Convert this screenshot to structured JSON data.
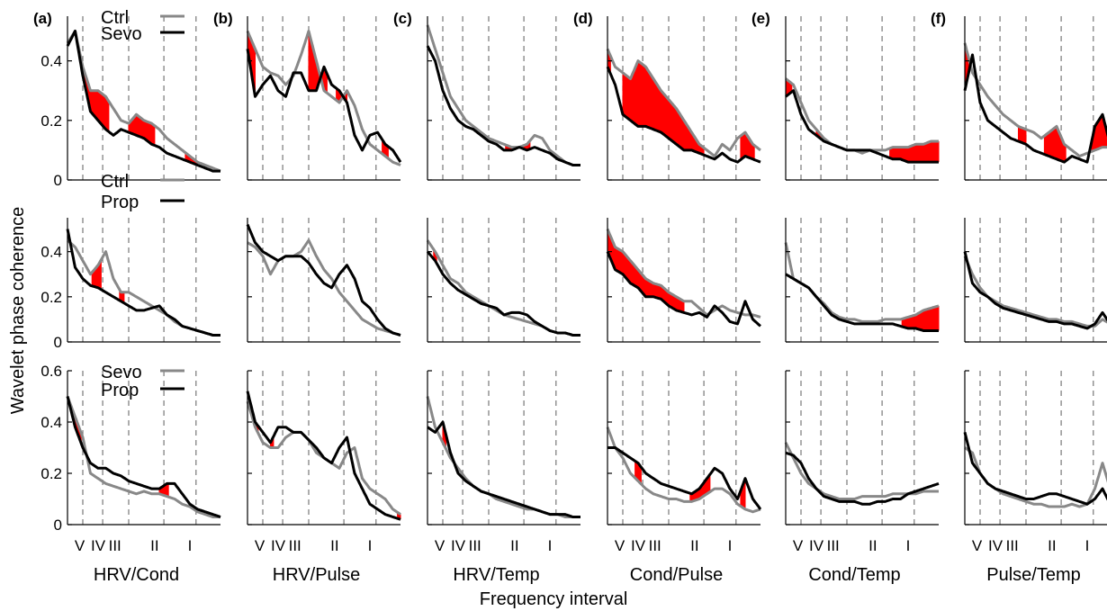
{
  "figure": {
    "ylabel": "Wavelet phase coherence",
    "xlabel": "Frequency interval",
    "interval_labels": [
      "V",
      "IV",
      "III",
      "II",
      "I"
    ],
    "colors": {
      "first": "#888888",
      "second": "#000000",
      "significant": "#ff0000",
      "divider": "#777777"
    }
  },
  "chart_data": {
    "type": "line",
    "panel_letters": [
      "(a)",
      "(b)",
      "(c)",
      "(d)",
      "(e)",
      "(f)"
    ],
    "column_titles": [
      "HRV/Cond",
      "HRV/Pulse",
      "HRV/Temp",
      "Cond/Pulse",
      "Cond/Temp",
      "Pulse/Temp"
    ],
    "rows": [
      {
        "legend": [
          "Ctrl",
          "Sevo"
        ],
        "yticks": [
          "0",
          "0.2",
          "0.4"
        ],
        "ylim": [
          0,
          0.55
        ]
      },
      {
        "legend": [
          "Ctrl",
          "Prop"
        ],
        "yticks": [
          "0",
          "0.2",
          "0.4"
        ],
        "ylim": [
          0,
          0.55
        ]
      },
      {
        "legend": [
          "Sevo",
          "Prop"
        ],
        "yticks": [
          "0",
          "0.2",
          "0.4",
          "0.6"
        ],
        "ylim": [
          0,
          0.6
        ]
      }
    ],
    "x_divisions": [
      0.1,
      0.23,
      0.4,
      0.63,
      0.84
    ],
    "x_label_positions": [
      0.08,
      0.2,
      0.31,
      0.57,
      0.8
    ],
    "panels": [
      [
        {
          "g": [
            0.46,
            0.5,
            0.38,
            0.3,
            0.3,
            0.28,
            0.24,
            0.2,
            0.19,
            0.22,
            0.2,
            0.19,
            0.17,
            0.14,
            0.12,
            0.1,
            0.08,
            0.06,
            0.05,
            0.04,
            0.03
          ],
          "k": [
            0.45,
            0.5,
            0.35,
            0.23,
            0.2,
            0.17,
            0.15,
            0.17,
            0.16,
            0.15,
            0.14,
            0.12,
            0.11,
            0.09,
            0.08,
            0.07,
            0.06,
            0.05,
            0.04,
            0.03,
            0.03
          ],
          "sig": [
            [
              0.1,
              0.27
            ],
            [
              0.4,
              0.57
            ],
            [
              0.77,
              0.85
            ]
          ]
        },
        {
          "g": [
            0.5,
            0.44,
            0.38,
            0.36,
            0.35,
            0.32,
            0.35,
            0.42,
            0.5,
            0.4,
            0.3,
            0.28,
            0.26,
            0.3,
            0.25,
            0.17,
            0.12,
            0.1,
            0.08,
            0.06,
            0.05
          ],
          "k": [
            0.44,
            0.28,
            0.32,
            0.35,
            0.3,
            0.28,
            0.36,
            0.36,
            0.3,
            0.3,
            0.38,
            0.32,
            0.3,
            0.26,
            0.15,
            0.1,
            0.15,
            0.16,
            0.12,
            0.1,
            0.06
          ],
          "sig": [
            [
              0.0,
              0.05
            ],
            [
              0.4,
              0.52
            ],
            [
              0.58,
              0.65
            ],
            [
              0.88,
              0.92
            ]
          ]
        },
        {
          "g": [
            0.52,
            0.44,
            0.36,
            0.28,
            0.24,
            0.2,
            0.18,
            0.16,
            0.14,
            0.13,
            0.12,
            0.11,
            0.11,
            0.12,
            0.15,
            0.14,
            0.1,
            0.08,
            0.06,
            0.05,
            0.05
          ],
          "k": [
            0.45,
            0.4,
            0.3,
            0.24,
            0.2,
            0.18,
            0.17,
            0.15,
            0.13,
            0.12,
            0.1,
            0.1,
            0.11,
            0.1,
            0.11,
            0.1,
            0.09,
            0.07,
            0.06,
            0.05,
            0.05
          ],
          "sig": [
            [
              0.51,
              0.55
            ],
            [
              0.62,
              0.67
            ]
          ]
        },
        {
          "g": [
            0.44,
            0.38,
            0.36,
            0.34,
            0.4,
            0.38,
            0.34,
            0.3,
            0.27,
            0.24,
            0.2,
            0.16,
            0.12,
            0.1,
            0.08,
            0.12,
            0.1,
            0.14,
            0.16,
            0.12,
            0.1
          ],
          "k": [
            0.38,
            0.32,
            0.22,
            0.2,
            0.18,
            0.18,
            0.17,
            0.16,
            0.14,
            0.12,
            0.1,
            0.1,
            0.09,
            0.08,
            0.07,
            0.09,
            0.07,
            0.06,
            0.08,
            0.07,
            0.06
          ],
          "sig": [
            [
              0.0,
              0.02
            ],
            [
              0.1,
              0.63
            ],
            [
              0.87,
              0.96
            ]
          ]
        },
        {
          "g": [
            0.34,
            0.32,
            0.26,
            0.2,
            0.17,
            0.14,
            0.12,
            0.11,
            0.1,
            0.1,
            0.09,
            0.1,
            0.1,
            0.1,
            0.11,
            0.11,
            0.11,
            0.12,
            0.12,
            0.13,
            0.13
          ],
          "k": [
            0.28,
            0.3,
            0.22,
            0.17,
            0.15,
            0.13,
            0.12,
            0.11,
            0.1,
            0.1,
            0.1,
            0.1,
            0.09,
            0.08,
            0.07,
            0.07,
            0.06,
            0.06,
            0.06,
            0.06,
            0.06
          ],
          "sig": [
            [
              0.0,
              0.04
            ],
            [
              0.2,
              0.24
            ],
            [
              0.68,
              1.0
            ]
          ]
        },
        {
          "g": [
            0.46,
            0.36,
            0.32,
            0.28,
            0.25,
            0.22,
            0.2,
            0.18,
            0.17,
            0.16,
            0.14,
            0.16,
            0.18,
            0.12,
            0.1,
            0.08,
            0.09,
            0.1,
            0.11,
            0.11,
            0.1
          ],
          "k": [
            0.3,
            0.42,
            0.26,
            0.2,
            0.18,
            0.16,
            0.14,
            0.13,
            0.12,
            0.1,
            0.09,
            0.08,
            0.07,
            0.06,
            0.08,
            0.07,
            0.06,
            0.18,
            0.22,
            0.12,
            0.06
          ],
          "sig": [
            [
              0.0,
              0.03
            ],
            [
              0.35,
              0.4
            ],
            [
              0.52,
              0.66
            ],
            [
              0.83,
              0.98
            ]
          ]
        }
      ],
      [
        {
          "g": [
            0.45,
            0.42,
            0.36,
            0.3,
            0.34,
            0.4,
            0.28,
            0.22,
            0.22,
            0.2,
            0.18,
            0.16,
            0.14,
            0.12,
            0.09,
            0.07,
            0.06,
            0.05,
            0.04,
            0.03,
            0.03
          ],
          "k": [
            0.5,
            0.33,
            0.28,
            0.25,
            0.24,
            0.22,
            0.2,
            0.18,
            0.16,
            0.14,
            0.14,
            0.15,
            0.16,
            0.12,
            0.1,
            0.07,
            0.06,
            0.05,
            0.04,
            0.03,
            0.03
          ],
          "sig": [
            [
              0.16,
              0.22
            ],
            [
              0.34,
              0.37
            ],
            [
              0.96,
              0.98
            ]
          ]
        },
        {
          "g": [
            0.44,
            0.42,
            0.38,
            0.3,
            0.36,
            0.38,
            0.38,
            0.4,
            0.45,
            0.38,
            0.32,
            0.28,
            0.22,
            0.18,
            0.14,
            0.1,
            0.08,
            0.06,
            0.05,
            0.04,
            0.03
          ],
          "k": [
            0.52,
            0.44,
            0.4,
            0.38,
            0.36,
            0.38,
            0.38,
            0.38,
            0.35,
            0.3,
            0.26,
            0.24,
            0.3,
            0.34,
            0.28,
            0.18,
            0.15,
            0.1,
            0.06,
            0.04,
            0.03
          ],
          "sig": []
        },
        {
          "g": [
            0.45,
            0.4,
            0.34,
            0.28,
            0.26,
            0.22,
            0.2,
            0.18,
            0.16,
            0.14,
            0.12,
            0.11,
            0.1,
            0.09,
            0.08,
            0.07,
            0.05,
            0.04,
            0.04,
            0.03,
            0.03
          ],
          "k": [
            0.4,
            0.36,
            0.3,
            0.26,
            0.23,
            0.21,
            0.19,
            0.17,
            0.16,
            0.15,
            0.12,
            0.13,
            0.13,
            0.12,
            0.09,
            0.07,
            0.05,
            0.04,
            0.04,
            0.03,
            0.03
          ],
          "sig": [
            [
              0.04,
              0.06
            ],
            [
              0.35,
              0.37
            ]
          ]
        },
        {
          "g": [
            0.5,
            0.42,
            0.4,
            0.36,
            0.32,
            0.28,
            0.26,
            0.25,
            0.22,
            0.2,
            0.18,
            0.18,
            0.15,
            0.12,
            0.14,
            0.16,
            0.14,
            0.13,
            0.12,
            0.12,
            0.11
          ],
          "k": [
            0.4,
            0.32,
            0.3,
            0.26,
            0.24,
            0.2,
            0.2,
            0.19,
            0.16,
            0.14,
            0.13,
            0.12,
            0.13,
            0.11,
            0.16,
            0.13,
            0.09,
            0.08,
            0.18,
            0.1,
            0.07
          ],
          "sig": [
            [
              0.0,
              0.5
            ]
          ]
        },
        {
          "g": [
            0.44,
            0.28,
            0.26,
            0.24,
            0.2,
            0.17,
            0.13,
            0.11,
            0.1,
            0.1,
            0.09,
            0.09,
            0.09,
            0.1,
            0.1,
            0.1,
            0.11,
            0.12,
            0.14,
            0.15,
            0.16
          ],
          "k": [
            0.3,
            0.28,
            0.26,
            0.24,
            0.2,
            0.16,
            0.12,
            0.1,
            0.09,
            0.08,
            0.08,
            0.08,
            0.08,
            0.08,
            0.08,
            0.07,
            0.06,
            0.06,
            0.05,
            0.05,
            0.05
          ],
          "sig": [
            [
              0.26,
              0.3
            ],
            [
              0.5,
              0.52
            ],
            [
              0.76,
              1.0
            ]
          ]
        },
        {
          "g": [
            0.38,
            0.3,
            0.24,
            0.2,
            0.18,
            0.16,
            0.15,
            0.14,
            0.13,
            0.12,
            0.11,
            0.1,
            0.1,
            0.09,
            0.09,
            0.08,
            0.07,
            0.07,
            0.1,
            0.08,
            0.06
          ],
          "k": [
            0.4,
            0.26,
            0.22,
            0.2,
            0.17,
            0.15,
            0.14,
            0.13,
            0.12,
            0.11,
            0.1,
            0.09,
            0.09,
            0.08,
            0.08,
            0.07,
            0.06,
            0.08,
            0.13,
            0.08,
            0.06
          ],
          "sig": []
        }
      ],
      [
        {
          "g": [
            0.5,
            0.42,
            0.34,
            0.2,
            0.18,
            0.16,
            0.15,
            0.14,
            0.13,
            0.12,
            0.13,
            0.12,
            0.12,
            0.11,
            0.1,
            0.08,
            0.07,
            0.05,
            0.04,
            0.03,
            0.03
          ],
          "k": [
            0.5,
            0.38,
            0.3,
            0.24,
            0.22,
            0.22,
            0.2,
            0.19,
            0.17,
            0.16,
            0.15,
            0.14,
            0.14,
            0.16,
            0.16,
            0.12,
            0.08,
            0.06,
            0.05,
            0.04,
            0.03
          ],
          "sig": [
            [
              0.02,
              0.09
            ],
            [
              0.6,
              0.66
            ],
            [
              0.97,
              0.99
            ]
          ]
        },
        {
          "g": [
            0.48,
            0.38,
            0.32,
            0.3,
            0.3,
            0.34,
            0.36,
            0.36,
            0.33,
            0.28,
            0.26,
            0.24,
            0.22,
            0.28,
            0.3,
            0.18,
            0.14,
            0.12,
            0.1,
            0.06,
            0.04
          ],
          "k": [
            0.52,
            0.4,
            0.36,
            0.32,
            0.38,
            0.38,
            0.36,
            0.36,
            0.33,
            0.3,
            0.26,
            0.24,
            0.3,
            0.34,
            0.2,
            0.14,
            0.08,
            0.06,
            0.04,
            0.03,
            0.02
          ],
          "sig": [
            [
              0.05,
              0.07
            ],
            [
              0.15,
              0.17
            ],
            [
              0.98,
              1.0
            ]
          ]
        },
        {
          "g": [
            0.5,
            0.38,
            0.32,
            0.26,
            0.22,
            0.18,
            0.15,
            0.13,
            0.12,
            0.1,
            0.09,
            0.08,
            0.07,
            0.06,
            0.06,
            0.05,
            0.04,
            0.04,
            0.03,
            0.03,
            0.03
          ],
          "k": [
            0.38,
            0.36,
            0.4,
            0.28,
            0.2,
            0.17,
            0.15,
            0.13,
            0.12,
            0.11,
            0.1,
            0.09,
            0.08,
            0.07,
            0.06,
            0.05,
            0.04,
            0.04,
            0.04,
            0.03,
            0.03
          ],
          "sig": [
            [
              0.1,
              0.12
            ]
          ]
        },
        {
          "g": [
            0.38,
            0.3,
            0.26,
            0.2,
            0.17,
            0.14,
            0.12,
            0.11,
            0.1,
            0.1,
            0.09,
            0.09,
            0.1,
            0.12,
            0.14,
            0.14,
            0.12,
            0.08,
            0.06,
            0.05,
            0.06
          ],
          "k": [
            0.3,
            0.3,
            0.28,
            0.26,
            0.24,
            0.2,
            0.18,
            0.16,
            0.15,
            0.14,
            0.13,
            0.12,
            0.14,
            0.18,
            0.22,
            0.2,
            0.14,
            0.1,
            0.18,
            0.1,
            0.06
          ],
          "sig": [
            [
              0.18,
              0.22
            ],
            [
              0.54,
              0.67
            ],
            [
              0.87,
              0.9
            ]
          ]
        },
        {
          "g": [
            0.32,
            0.26,
            0.2,
            0.16,
            0.14,
            0.12,
            0.11,
            0.1,
            0.1,
            0.1,
            0.11,
            0.11,
            0.11,
            0.11,
            0.12,
            0.12,
            0.12,
            0.12,
            0.13,
            0.13,
            0.13
          ],
          "k": [
            0.28,
            0.27,
            0.24,
            0.18,
            0.14,
            0.11,
            0.1,
            0.09,
            0.09,
            0.09,
            0.08,
            0.08,
            0.09,
            0.09,
            0.1,
            0.1,
            0.12,
            0.13,
            0.14,
            0.15,
            0.16
          ],
          "sig": [
            [
              0.17,
              0.21
            ]
          ]
        },
        {
          "g": [
            0.3,
            0.28,
            0.2,
            0.16,
            0.14,
            0.12,
            0.11,
            0.1,
            0.09,
            0.08,
            0.08,
            0.07,
            0.07,
            0.07,
            0.08,
            0.07,
            0.08,
            0.14,
            0.24,
            0.14,
            0.06
          ],
          "k": [
            0.36,
            0.24,
            0.2,
            0.16,
            0.14,
            0.13,
            0.12,
            0.11,
            0.1,
            0.1,
            0.11,
            0.12,
            0.12,
            0.11,
            0.1,
            0.09,
            0.08,
            0.1,
            0.14,
            0.08,
            0.04
          ],
          "sig": []
        }
      ]
    ]
  }
}
